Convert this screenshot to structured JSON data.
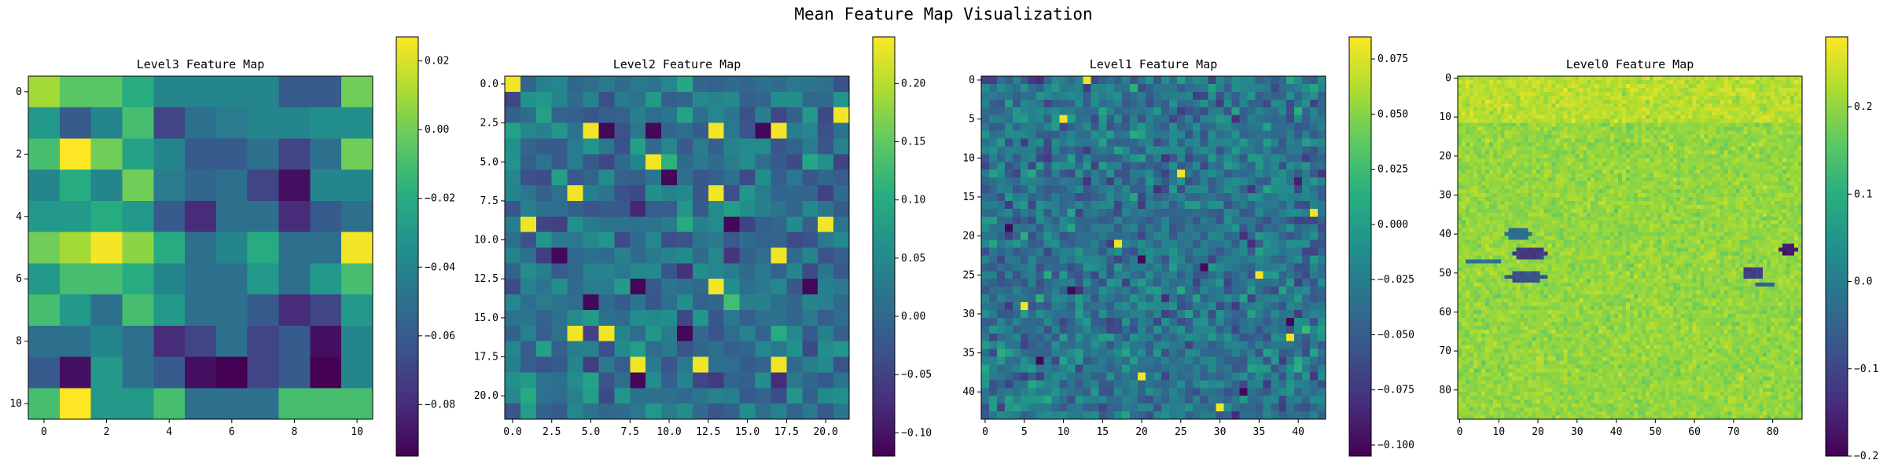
{
  "figure_title": "Mean Feature Map Visualization",
  "colormap": "viridis",
  "chart_data": [
    {
      "type": "heatmap",
      "title": "Level3 Feature Map",
      "rows": 11,
      "cols": 11,
      "xticks": [
        0,
        2,
        4,
        6,
        8,
        10
      ],
      "yticks": [
        0,
        2,
        4,
        6,
        8,
        10
      ],
      "xtick_labels": [
        "0",
        "2",
        "4",
        "6",
        "8",
        "10"
      ],
      "ytick_labels": [
        "0",
        "2",
        "4",
        "6",
        "8",
        "10"
      ],
      "vmin": -0.095,
      "vmax": 0.027,
      "colorbar_ticks": [
        0.02,
        0.0,
        -0.02,
        -0.04,
        -0.06,
        -0.08
      ],
      "colorbar_labels": [
        "0.02",
        "0.00",
        "−0.02",
        "−0.04",
        "−0.06",
        "−0.08"
      ],
      "values": [
        [
          0.01,
          -0.005,
          -0.005,
          -0.02,
          -0.04,
          -0.04,
          -0.04,
          -0.04,
          -0.06,
          -0.06,
          0.0
        ],
        [
          -0.03,
          -0.06,
          -0.04,
          -0.01,
          -0.07,
          -0.05,
          -0.045,
          -0.04,
          -0.04,
          -0.035,
          -0.035
        ],
        [
          -0.01,
          0.027,
          0.0,
          -0.025,
          -0.04,
          -0.06,
          -0.06,
          -0.05,
          -0.07,
          -0.05,
          0.0
        ],
        [
          -0.04,
          -0.02,
          -0.04,
          0.0,
          -0.045,
          -0.055,
          -0.05,
          -0.07,
          -0.09,
          -0.04,
          -0.04
        ],
        [
          -0.03,
          -0.03,
          -0.02,
          -0.03,
          -0.06,
          -0.08,
          -0.05,
          -0.05,
          -0.08,
          -0.06,
          -0.05
        ],
        [
          0.0,
          0.01,
          0.025,
          0.005,
          -0.02,
          -0.05,
          -0.04,
          -0.02,
          -0.05,
          -0.05,
          0.025
        ],
        [
          -0.03,
          -0.01,
          -0.01,
          -0.02,
          -0.04,
          -0.05,
          -0.05,
          -0.03,
          -0.05,
          -0.03,
          -0.01
        ],
        [
          -0.01,
          -0.03,
          -0.05,
          -0.01,
          -0.03,
          -0.05,
          -0.05,
          -0.06,
          -0.08,
          -0.07,
          -0.03
        ],
        [
          -0.05,
          -0.05,
          -0.04,
          -0.05,
          -0.08,
          -0.07,
          -0.05,
          -0.07,
          -0.06,
          -0.09,
          -0.04
        ],
        [
          -0.06,
          -0.09,
          -0.03,
          -0.05,
          -0.06,
          -0.09,
          -0.095,
          -0.07,
          -0.06,
          -0.095,
          -0.04
        ],
        [
          -0.01,
          0.027,
          -0.03,
          -0.03,
          -0.01,
          -0.05,
          -0.05,
          -0.05,
          -0.01,
          -0.01,
          -0.01
        ]
      ]
    },
    {
      "type": "heatmap",
      "title": "Level2 Feature Map",
      "rows": 22,
      "cols": 22,
      "xticks": [
        0,
        2.5,
        5,
        7.5,
        10,
        12.5,
        15,
        17.5,
        20
      ],
      "yticks": [
        0,
        2.5,
        5,
        7.5,
        10,
        12.5,
        15,
        17.5,
        20
      ],
      "xtick_labels": [
        "0.0",
        "2.5",
        "5.0",
        "7.5",
        "10.0",
        "12.5",
        "15.0",
        "17.5",
        "20.0"
      ],
      "ytick_labels": [
        "0.0",
        "2.5",
        "5.0",
        "7.5",
        "10.0",
        "12.5",
        "15.0",
        "17.5",
        "20.0"
      ],
      "vmin": -0.12,
      "vmax": 0.24,
      "colorbar_ticks": [
        0.2,
        0.15,
        0.1,
        0.05,
        0.0,
        -0.05,
        -0.1
      ],
      "colorbar_labels": [
        "0.20",
        "0.15",
        "0.10",
        "0.05",
        "0.00",
        "−0.05",
        "−0.10"
      ],
      "seed": 211,
      "hot_cells": [
        [
          3,
          5
        ],
        [
          3,
          13
        ],
        [
          3,
          17
        ],
        [
          5,
          9
        ],
        [
          7,
          4
        ],
        [
          7,
          13
        ],
        [
          9,
          1
        ],
        [
          9,
          20
        ],
        [
          11,
          17
        ],
        [
          13,
          13
        ],
        [
          16,
          4
        ],
        [
          16,
          6
        ],
        [
          18,
          8
        ],
        [
          18,
          12
        ],
        [
          18,
          17
        ],
        [
          0,
          0
        ],
        [
          2,
          21
        ]
      ],
      "cold_cells": [
        [
          3,
          6
        ],
        [
          3,
          9
        ],
        [
          3,
          16
        ],
        [
          6,
          10
        ],
        [
          13,
          8
        ],
        [
          13,
          19
        ],
        [
          16,
          11
        ],
        [
          19,
          8
        ],
        [
          11,
          3
        ],
        [
          14,
          5
        ],
        [
          9,
          14
        ]
      ]
    },
    {
      "type": "heatmap",
      "title": "Level1 Feature Map",
      "rows": 44,
      "cols": 44,
      "xticks": [
        0,
        5,
        10,
        15,
        20,
        25,
        30,
        35,
        40
      ],
      "yticks": [
        0,
        5,
        10,
        15,
        20,
        25,
        30,
        35,
        40
      ],
      "xtick_labels": [
        "0",
        "5",
        "10",
        "15",
        "20",
        "25",
        "30",
        "35",
        "40"
      ],
      "ytick_labels": [
        "0",
        "5",
        "10",
        "15",
        "20",
        "25",
        "30",
        "35",
        "40"
      ],
      "vmin": -0.105,
      "vmax": 0.085,
      "colorbar_ticks": [
        0.075,
        0.05,
        0.025,
        0.0,
        -0.025,
        -0.05,
        -0.075,
        -0.1
      ],
      "colorbar_labels": [
        "0.075",
        "0.050",
        "0.025",
        "0.000",
        "−0.025",
        "−0.050",
        "−0.075",
        "−0.100"
      ],
      "seed": 97,
      "hot_cells": [
        [
          17,
          42
        ],
        [
          21,
          17
        ],
        [
          25,
          35
        ],
        [
          0,
          13
        ],
        [
          5,
          10
        ],
        [
          29,
          5
        ],
        [
          33,
          39
        ],
        [
          12,
          25
        ],
        [
          38,
          20
        ],
        [
          42,
          30
        ]
      ],
      "cold_cells": [
        [
          23,
          20
        ],
        [
          24,
          28
        ],
        [
          27,
          11
        ],
        [
          31,
          39
        ],
        [
          36,
          7
        ],
        [
          40,
          33
        ],
        [
          19,
          3
        ]
      ]
    },
    {
      "type": "heatmap",
      "title": "Level0 Feature Map",
      "rows": 88,
      "cols": 88,
      "xticks": [
        0,
        10,
        20,
        30,
        40,
        50,
        60,
        70,
        80
      ],
      "yticks": [
        0,
        10,
        20,
        30,
        40,
        50,
        60,
        70,
        80
      ],
      "xtick_labels": [
        "0",
        "10",
        "20",
        "30",
        "40",
        "50",
        "60",
        "70",
        "80"
      ],
      "ytick_labels": [
        "0",
        "10",
        "20",
        "30",
        "40",
        "50",
        "60",
        "70",
        "80"
      ],
      "vmin": -0.2,
      "vmax": 0.28,
      "colorbar_ticks": [
        0.2,
        0.1,
        0.0,
        -0.1,
        -0.2
      ],
      "colorbar_labels": [
        "0.2",
        "0.1",
        "0.0",
        "−0.1",
        "−0.2"
      ],
      "seed": 53,
      "features": [
        {
          "cx": 18,
          "cy": 45,
          "rx": 5,
          "ry": 1.5,
          "value": -0.12
        },
        {
          "cx": 17,
          "cy": 51,
          "rx": 6,
          "ry": 1.2,
          "value": -0.08
        },
        {
          "cx": 15,
          "cy": 40,
          "rx": 4,
          "ry": 1.2,
          "value": -0.03
        },
        {
          "cx": 6,
          "cy": 47,
          "rx": 5,
          "ry": 1.0,
          "value": -0.02
        },
        {
          "cx": 84,
          "cy": 44,
          "rx": 3,
          "ry": 1.2,
          "value": -0.17
        },
        {
          "cx": 75,
          "cy": 50,
          "rx": 3,
          "ry": 1.5,
          "value": -0.1
        },
        {
          "cx": 78,
          "cy": 53,
          "rx": 3,
          "ry": 1.0,
          "value": -0.05
        }
      ]
    }
  ]
}
